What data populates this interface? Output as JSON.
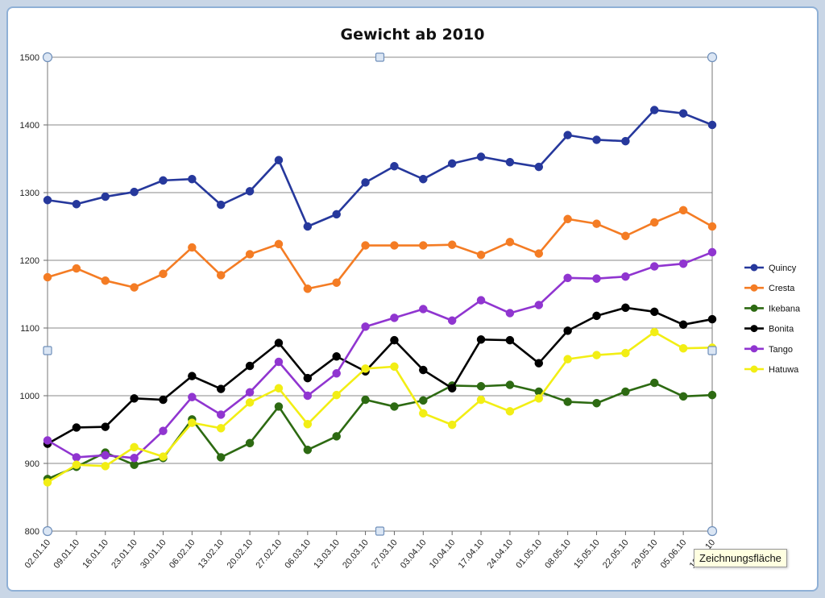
{
  "chart_data": {
    "type": "line",
    "title": "Gewicht ab 2010",
    "xlabel": "",
    "ylabel": "",
    "ylim": [
      800,
      1500
    ],
    "yticks": [
      "800",
      "900",
      "1000",
      "1100",
      "1200",
      "1300",
      "1400",
      "1500"
    ],
    "grid": true,
    "legend_position": "right",
    "categories": [
      "02.01.10",
      "09.01.10",
      "16.01.10",
      "23.01.10",
      "30.01.10",
      "06.02.10",
      "13.02.10",
      "20.02.10",
      "27.02.10",
      "06.03.10",
      "13.03.10",
      "20.03.10",
      "27.03.10",
      "03.04.10",
      "10.04.10",
      "17.04.10",
      "24.04.10",
      "01.05.10",
      "08.05.10",
      "15.05.10",
      "22.05.10",
      "29.05.10",
      "05.06.10",
      "12.06.10"
    ],
    "series": [
      {
        "name": "Quincy",
        "color": "#26389c",
        "values": [
          1289,
          1283,
          1294,
          1301,
          1318,
          1320,
          1282,
          1302,
          1348,
          1250,
          1268,
          1315,
          1339,
          1320,
          1343,
          1353,
          1345,
          1338,
          1385,
          1378,
          1376,
          1422,
          1417,
          1400
        ]
      },
      {
        "name": "Cresta",
        "color": "#f47c24",
        "values": [
          1175,
          1188,
          1170,
          1160,
          1180,
          1219,
          1178,
          1209,
          1224,
          1158,
          1167,
          1222,
          1222,
          1222,
          1223,
          1208,
          1227,
          1210,
          1261,
          1254,
          1236,
          1256,
          1274,
          1250
        ]
      },
      {
        "name": "Ikebana",
        "color": "#2d6a12",
        "values": [
          877,
          895,
          916,
          898,
          908,
          965,
          909,
          930,
          984,
          920,
          940,
          994,
          984,
          993,
          1015,
          1014,
          1016,
          1006,
          991,
          989,
          1006,
          1019,
          999,
          1001
        ]
      },
      {
        "name": "Bonita",
        "color": "#000000",
        "values": [
          929,
          953,
          954,
          996,
          994,
          1029,
          1010,
          1044,
          1078,
          1026,
          1058,
          1036,
          1082,
          1038,
          1011,
          1083,
          1082,
          1048,
          1096,
          1118,
          1130,
          1124,
          1105,
          1113
        ]
      },
      {
        "name": "Tango",
        "color": "#9035d0",
        "values": [
          934,
          909,
          912,
          908,
          948,
          998,
          972,
          1005,
          1050,
          1000,
          1033,
          1102,
          1115,
          1128,
          1111,
          1141,
          1122,
          1134,
          1174,
          1173,
          1176,
          1191,
          1195,
          1212
        ]
      },
      {
        "name": "Hatuwa",
        "color": "#f2ee14",
        "values": [
          872,
          898,
          896,
          924,
          910,
          960,
          952,
          990,
          1011,
          958,
          1001,
          1040,
          1043,
          974,
          957,
          994,
          977,
          996,
          1054,
          1060,
          1063,
          1094,
          1070,
          1071
        ]
      }
    ]
  },
  "tooltip": {
    "text": "Zeichnungsfläche"
  }
}
